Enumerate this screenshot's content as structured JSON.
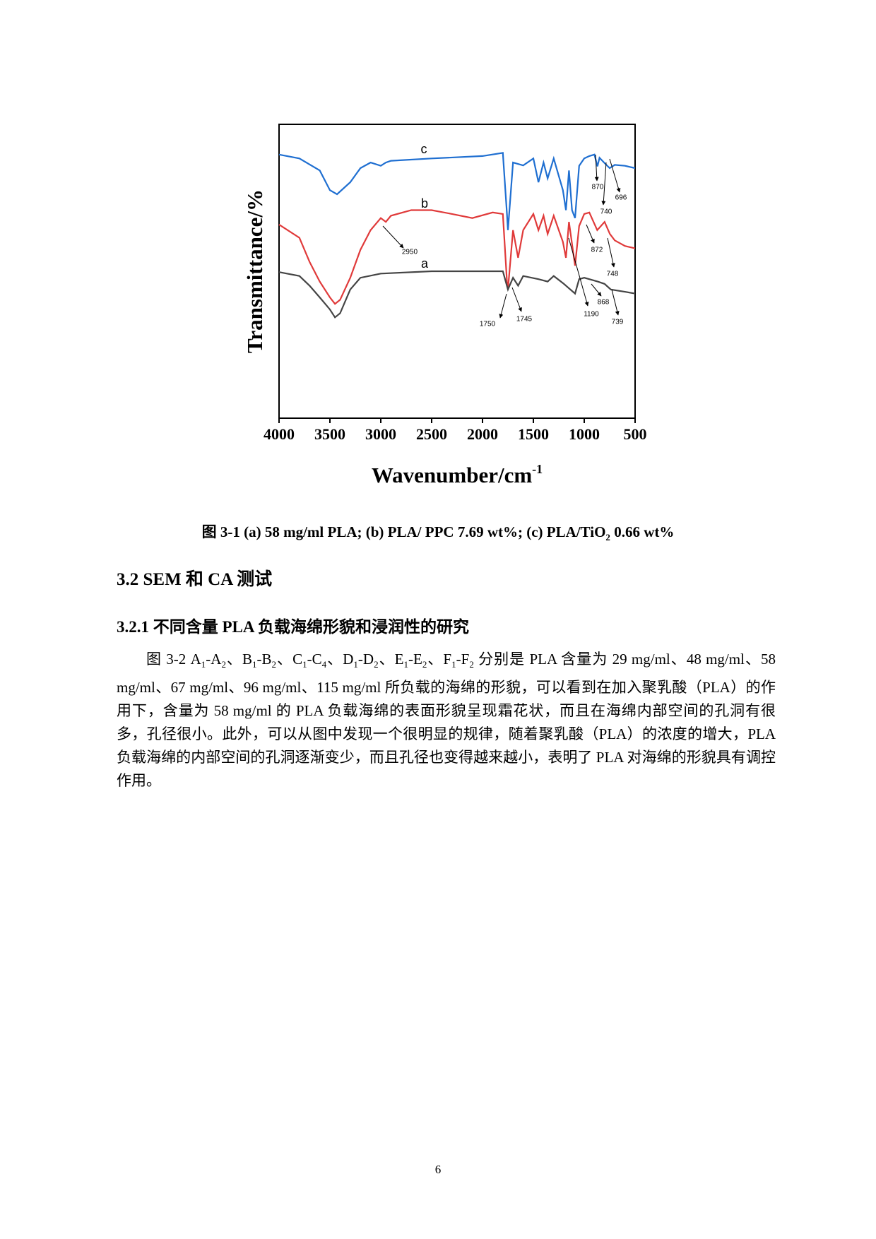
{
  "chart_data": {
    "type": "line",
    "y_label": "Transmittance/%",
    "x_label": [
      "Wavenumber/cm",
      {
        "text": "-1",
        "style": "sup"
      }
    ],
    "xlim": [
      4000,
      500
    ],
    "xticks": [
      4000,
      3500,
      3000,
      2500,
      2000,
      1500,
      1000,
      500
    ],
    "ylim": [
      0,
      100
    ],
    "series": [
      {
        "name": "c",
        "color": "#1f6fd1",
        "x": [
          4000,
          3800,
          3600,
          3500,
          3430,
          3300,
          3200,
          3100,
          3000,
          2950,
          2900,
          2500,
          2000,
          1800,
          1760,
          1750,
          1700,
          1600,
          1500,
          1450,
          1400,
          1360,
          1300,
          1210,
          1180,
          1150,
          1120,
          1090,
          1050,
          1000,
          950,
          900,
          870,
          850,
          800,
          750,
          700,
          600,
          500
        ],
        "values": [
          89.7,
          88.4,
          84.3,
          77.6,
          76.2,
          80.3,
          85.1,
          87,
          85.9,
          87,
          87.6,
          88.4,
          89.2,
          90.3,
          69.5,
          64,
          87,
          86,
          88.4,
          80.3,
          87,
          81.6,
          88.4,
          77.6,
          70.8,
          84.3,
          70.8,
          68.1,
          85.9,
          88.4,
          89.2,
          89.7,
          85.7,
          88.6,
          86.8,
          85.1,
          86.2,
          85.9,
          85.1
        ]
      },
      {
        "name": "b",
        "color": "#e03a3a",
        "x": [
          4000,
          3800,
          3700,
          3600,
          3500,
          3450,
          3400,
          3300,
          3200,
          3100,
          3000,
          2950,
          2900,
          2700,
          2500,
          2300,
          2100,
          1900,
          1800,
          1760,
          1750,
          1700,
          1650,
          1600,
          1500,
          1450,
          1400,
          1360,
          1300,
          1210,
          1180,
          1150,
          1090,
          1050,
          1000,
          950,
          872,
          800,
          748,
          700,
          600,
          500
        ],
        "values": [
          65.9,
          61.4,
          53.2,
          46.5,
          41.1,
          38.9,
          40.3,
          47.8,
          57.3,
          64,
          68.1,
          66.8,
          68.9,
          70.8,
          70.8,
          69.5,
          68.1,
          70,
          69.5,
          46.5,
          43.8,
          64,
          54.6,
          64,
          69.5,
          64,
          68.9,
          62.7,
          68.9,
          60,
          54.6,
          66.8,
          51.9,
          65.4,
          69.5,
          70,
          64,
          66.8,
          62.7,
          60.5,
          58.6,
          57.8
        ]
      },
      {
        "name": "a",
        "color": "#454545",
        "x": [
          4000,
          3800,
          3700,
          3600,
          3500,
          3450,
          3400,
          3300,
          3200,
          3000,
          2500,
          2000,
          1800,
          1750,
          1700,
          1650,
          1600,
          1450,
          1360,
          1300,
          1200,
          1180,
          1090,
          1050,
          1000,
          868,
          800,
          739,
          600,
          500
        ],
        "values": [
          49.7,
          48.4,
          45.1,
          41.1,
          37,
          34.3,
          35.7,
          43.8,
          47.8,
          49.2,
          50,
          50,
          50,
          43.8,
          47.8,
          45.1,
          48.4,
          47.3,
          46.5,
          48.4,
          45.7,
          45.1,
          42.4,
          47.3,
          47.8,
          46.5,
          45.7,
          43.8,
          43,
          42.4
        ]
      }
    ],
    "annotations": [
      "870",
      "696",
      "740",
      "2950",
      "872",
      "748",
      "868",
      "1750",
      "1745",
      "1190",
      "739"
    ]
  },
  "caption": [
    "图 3-1 (a) 58 mg/ml PLA; (b) PLA/ PPC 7.69 wt%; (c) PLA/TiO",
    {
      "text": "2",
      "style": "sub"
    },
    " 0.66 wt%"
  ],
  "heading": "3.2 SEM 和 CA 测试",
  "subheading": "3.2.1 不同含量 PLA 负载海绵形貌和浸润性的研究",
  "paragraph": [
    "图 3-2 A",
    {
      "text": "1",
      "style": "sub"
    },
    "-A",
    {
      "text": "2",
      "style": "sub"
    },
    "、B",
    {
      "text": "1",
      "style": "sub"
    },
    "-B",
    {
      "text": "2",
      "style": "sub"
    },
    "、C",
    {
      "text": "1",
      "style": "sub"
    },
    "-C",
    {
      "text": "4",
      "style": "sub"
    },
    "、D",
    {
      "text": "1",
      "style": "sub"
    },
    "-D",
    {
      "text": "2",
      "style": "sub"
    },
    "、E",
    {
      "text": "1",
      "style": "sub"
    },
    "-E",
    {
      "text": "2",
      "style": "sub"
    },
    "、F",
    {
      "text": "1",
      "style": "sub"
    },
    "-F",
    {
      "text": "2",
      "style": "sub"
    },
    " 分别是 PLA 含量为 29 mg/ml、48 mg/ml、58 mg/ml、67 mg/ml、96 mg/ml、115 mg/ml 所负载的海绵的形貌，可以看到在加入聚乳酸（PLA）的作用下，含量为 58 mg/ml 的 PLA 负载海绵的表面形貌呈现霜花状，而且在海绵内部空间的孔洞有很多，孔径很小。此外，可以从图中发现一个很明显的规律，随着聚乳酸（PLA）的浓度的增大，PLA 负载海绵的内部空间的孔洞逐渐变少，而且孔径也变得越来越小，表明了 PLA 对海绵的形貌具有调控作用。"
  ],
  "page_number": "6"
}
